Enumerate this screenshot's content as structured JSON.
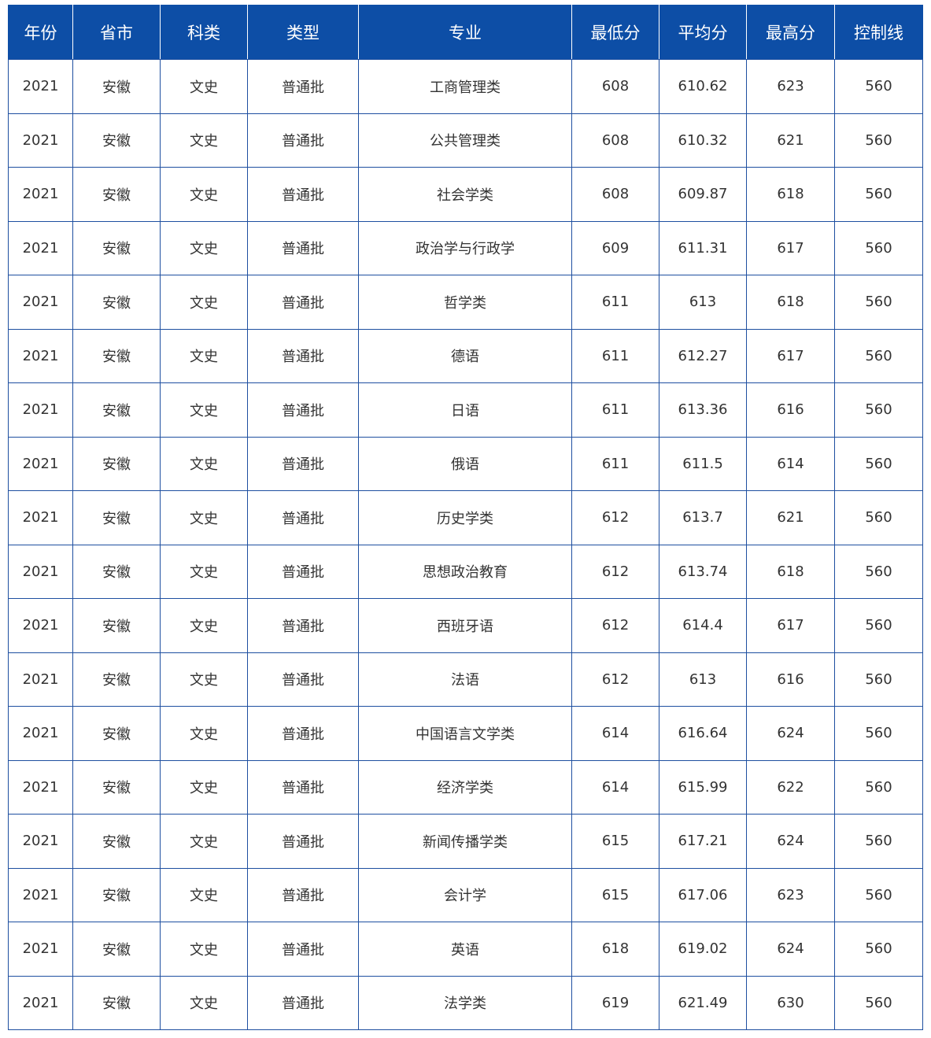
{
  "table": {
    "headers": [
      "年份",
      "省市",
      "科类",
      "类型",
      "专业",
      "最低分",
      "平均分",
      "最高分",
      "控制线"
    ],
    "rows": [
      [
        "2021",
        "安徽",
        "文史",
        "普通批",
        "工商管理类",
        "608",
        "610.62",
        "623",
        "560"
      ],
      [
        "2021",
        "安徽",
        "文史",
        "普通批",
        "公共管理类",
        "608",
        "610.32",
        "621",
        "560"
      ],
      [
        "2021",
        "安徽",
        "文史",
        "普通批",
        "社会学类",
        "608",
        "609.87",
        "618",
        "560"
      ],
      [
        "2021",
        "安徽",
        "文史",
        "普通批",
        "政治学与行政学",
        "609",
        "611.31",
        "617",
        "560"
      ],
      [
        "2021",
        "安徽",
        "文史",
        "普通批",
        "哲学类",
        "611",
        "613",
        "618",
        "560"
      ],
      [
        "2021",
        "安徽",
        "文史",
        "普通批",
        "德语",
        "611",
        "612.27",
        "617",
        "560"
      ],
      [
        "2021",
        "安徽",
        "文史",
        "普通批",
        "日语",
        "611",
        "613.36",
        "616",
        "560"
      ],
      [
        "2021",
        "安徽",
        "文史",
        "普通批",
        "俄语",
        "611",
        "611.5",
        "614",
        "560"
      ],
      [
        "2021",
        "安徽",
        "文史",
        "普通批",
        "历史学类",
        "612",
        "613.7",
        "621",
        "560"
      ],
      [
        "2021",
        "安徽",
        "文史",
        "普通批",
        "思想政治教育",
        "612",
        "613.74",
        "618",
        "560"
      ],
      [
        "2021",
        "安徽",
        "文史",
        "普通批",
        "西班牙语",
        "612",
        "614.4",
        "617",
        "560"
      ],
      [
        "2021",
        "安徽",
        "文史",
        "普通批",
        "法语",
        "612",
        "613",
        "616",
        "560"
      ],
      [
        "2021",
        "安徽",
        "文史",
        "普通批",
        "中国语言文学类",
        "614",
        "616.64",
        "624",
        "560"
      ],
      [
        "2021",
        "安徽",
        "文史",
        "普通批",
        "经济学类",
        "614",
        "615.99",
        "622",
        "560"
      ],
      [
        "2021",
        "安徽",
        "文史",
        "普通批",
        "新闻传播学类",
        "615",
        "617.21",
        "624",
        "560"
      ],
      [
        "2021",
        "安徽",
        "文史",
        "普通批",
        "会计学",
        "615",
        "617.06",
        "623",
        "560"
      ],
      [
        "2021",
        "安徽",
        "文史",
        "普通批",
        "英语",
        "618",
        "619.02",
        "624",
        "560"
      ],
      [
        "2021",
        "安徽",
        "文史",
        "普通批",
        "法学类",
        "619",
        "621.49",
        "630",
        "560"
      ]
    ]
  },
  "colors": {
    "header_bg": "#0d4ea6",
    "border": "#1e4fa0"
  }
}
